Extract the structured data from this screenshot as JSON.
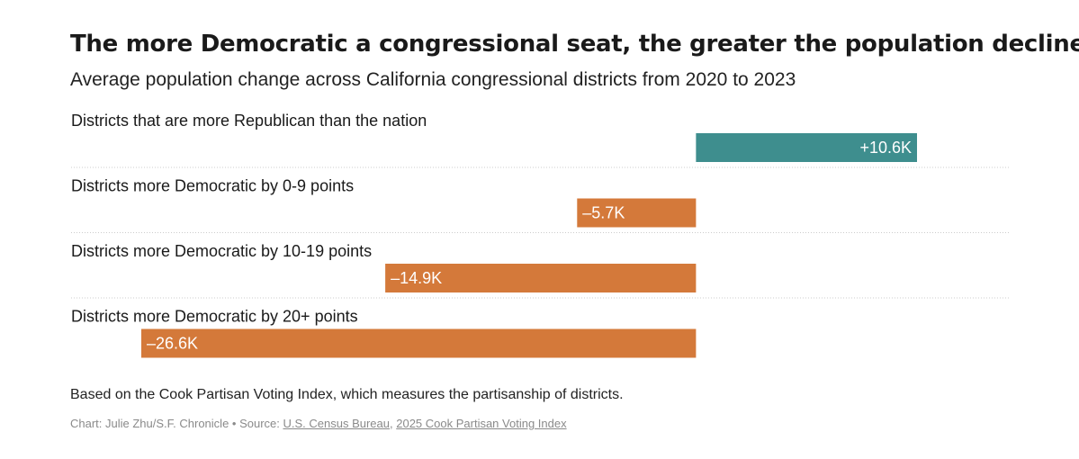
{
  "chart_data": {
    "type": "bar",
    "orientation": "horizontal",
    "title": "The more Democratic a congressional seat, the greater the population decline",
    "subtitle": "Average population change across California congressional districts from 2020 to 2023",
    "categories": [
      "Districts that are more Republican than the nation",
      "Districts more Democratic by 0-9 points",
      "Districts more Democratic by 10-19 points",
      "Districts more Democratic by 20+ points"
    ],
    "values": [
      10.6,
      -5.7,
      -14.9,
      -26.6
    ],
    "value_labels": [
      "+10.6K",
      "–5.7K",
      "–14.9K",
      "–26.6K"
    ],
    "unit": "thousand people",
    "xlim": [
      -26.6,
      10.6
    ],
    "colors": {
      "positive": "#3e8e8e",
      "negative": "#d4793a",
      "divider": "#cccccc"
    }
  },
  "footer": {
    "note": "Based on the Cook Partisan Voting Index, which measures the partisanship of districts.",
    "credit_prefix": "Chart: Julie Zhu/S.F. Chronicle • Source: ",
    "source_1": "U.S. Census Bureau",
    "separator": ", ",
    "source_2": "2025 Cook Partisan Voting Index"
  }
}
